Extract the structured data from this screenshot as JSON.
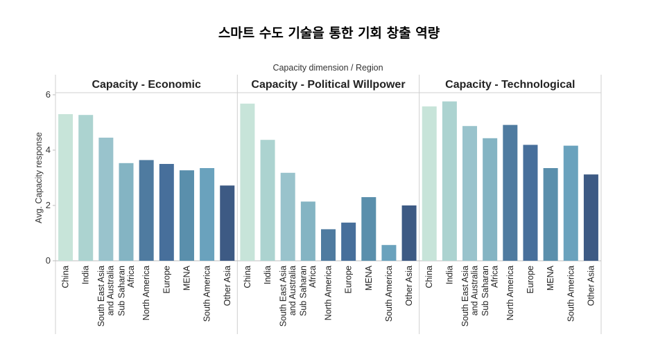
{
  "title": "스마트 수도 기술을 통한 기회 창출 역량",
  "chart_data": {
    "type": "bar",
    "super_title": "Capacity dimension  /  Region",
    "ylabel": "Avg. Capacity response",
    "ylim": [
      0,
      6
    ],
    "yticks": [
      0,
      2,
      4,
      6
    ],
    "grid": false,
    "categories": [
      [
        "China"
      ],
      [
        "India"
      ],
      [
        "South East Asia",
        "and Australia"
      ],
      [
        "Sub Saharan",
        "Africa"
      ],
      [
        "North America"
      ],
      [
        "Europe"
      ],
      [
        "MENA"
      ],
      [
        "South America"
      ],
      [
        "Other Asia"
      ]
    ],
    "colors": [
      "#c7e4d9",
      "#acd3d0",
      "#99c3cc",
      "#84b4c3",
      "#4f7ba0",
      "#476f9b",
      "#5a8fac",
      "#6aa2bd",
      "#3d5a84"
    ],
    "panels": [
      {
        "name": "Capacity - Economic",
        "values": [
          5.3,
          5.27,
          4.45,
          3.53,
          3.64,
          3.5,
          3.27,
          3.35,
          2.72
        ]
      },
      {
        "name": "Capacity - Political Willpower",
        "values": [
          5.68,
          4.37,
          3.18,
          2.14,
          1.14,
          1.38,
          2.3,
          0.57,
          2.0
        ]
      },
      {
        "name": "Capacity - Technological",
        "values": [
          5.58,
          5.76,
          4.87,
          4.43,
          4.91,
          4.19,
          3.35,
          4.16,
          3.12
        ]
      }
    ]
  }
}
